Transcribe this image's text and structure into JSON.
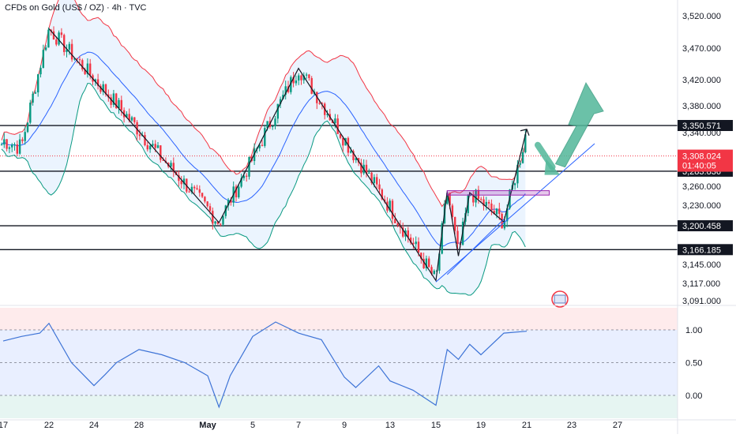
{
  "header": {
    "title": "CFDs on Gold (US$ / OZ) · 4h · TVC"
  },
  "colors": {
    "up": "#089981",
    "down": "#f23645",
    "bb_upper": "#f23645",
    "bb_basis": "#2962ff",
    "bb_lower": "#089981",
    "bb_fill": "#e3effd",
    "level_line": "#131722",
    "trendline": "#2962ff",
    "rsi_line": "#3d73d6",
    "arrow": "#52b79a",
    "price_tag": "#f23645"
  },
  "chart_data": [
    {
      "type": "candlestick",
      "title": "CFDs on Gold (US$ / OZ) · 4h · TVC",
      "y_axis_ticks": [
        "3,520.000",
        "3,470.000",
        "3,420.000",
        "3,380.000",
        "3,340.000",
        "3,310.000",
        "3,260.000",
        "3,230.000",
        "3,145.000",
        "3,117.000",
        "3,091.000"
      ],
      "ylim": [
        3085,
        3535
      ],
      "x_axis_ticks": [
        "17",
        "22",
        "24",
        "28",
        "May",
        "5",
        "7",
        "9",
        "13",
        "15",
        "19",
        "21",
        "23",
        "27"
      ],
      "price_levels": [
        {
          "label": "3,350.571",
          "value": 3350.571
        },
        {
          "label": "3,283.836",
          "value": 3283.836
        },
        {
          "label": "3,200.458",
          "value": 3200.458
        },
        {
          "label": "3,166.185",
          "value": 3166.185
        }
      ],
      "current_price": {
        "label": "3,308.024",
        "countdown": "01:40:05",
        "value": 3308.024
      },
      "zigzag_points": [
        {
          "date": "Apr 22",
          "price": 3500
        },
        {
          "date": "May 2",
          "price": 3205
        },
        {
          "date": "May 7",
          "price": 3438
        },
        {
          "date": "May 15",
          "price": 3121
        },
        {
          "date": "May 16",
          "price": 3252
        },
        {
          "date": "May 17",
          "price": 3157
        },
        {
          "date": "May 18",
          "price": 3250
        },
        {
          "date": "May 20",
          "price": 3206
        },
        {
          "date": "May 21",
          "price": 3345
        }
      ],
      "projection": [
        {
          "date": "May 21",
          "price": 3345
        },
        {
          "date": "May 22",
          "price": 3288
        },
        {
          "date": "May 23",
          "price": 3385
        }
      ],
      "grid": false,
      "legend": "none"
    },
    {
      "type": "line",
      "y_axis_ticks": [
        "1.00",
        "0.50",
        "0.00"
      ],
      "ylim": [
        -0.22,
        1.35
      ],
      "bands": [
        1.0,
        0.5,
        0.0
      ],
      "x": [
        "Apr 17",
        "Apr 19",
        "Apr 21",
        "Apr 22",
        "Apr 23",
        "Apr 24",
        "Apr 25",
        "Apr 26",
        "Apr 28",
        "Apr 29",
        "Apr 30",
        "May 1",
        "May 2",
        "May 3",
        "May 5",
        "May 6",
        "May 7",
        "May 8",
        "May 9",
        "May 10",
        "May 12",
        "May 13",
        "May 14",
        "May 15",
        "May 16",
        "May 17",
        "May 18",
        "May 19",
        "May 20",
        "May 21"
      ],
      "values": [
        0.83,
        0.9,
        0.95,
        1.1,
        0.5,
        0.15,
        0.32,
        0.5,
        0.7,
        0.62,
        0.5,
        0.3,
        -0.18,
        0.3,
        0.9,
        1.12,
        0.95,
        0.85,
        0.28,
        0.12,
        0.45,
        0.22,
        0.08,
        -0.15,
        0.7,
        0.55,
        0.78,
        0.62,
        0.95,
        0.98
      ],
      "legend": "none"
    }
  ]
}
